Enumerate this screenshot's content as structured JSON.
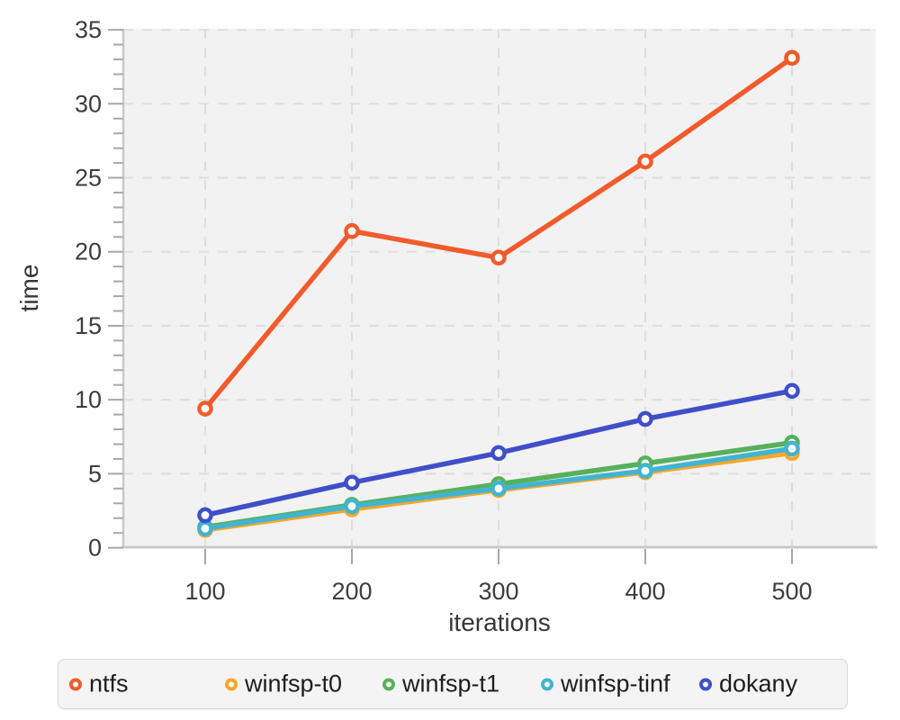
{
  "chart_data": {
    "type": "line",
    "x": [
      100,
      200,
      300,
      400,
      500
    ],
    "series": [
      {
        "name": "ntfs",
        "color": "#f15b2b",
        "values": [
          9.4,
          21.4,
          19.6,
          26.1,
          33.1
        ]
      },
      {
        "name": "winfsp-t0",
        "color": "#f9a72a",
        "values": [
          1.2,
          2.6,
          3.9,
          5.1,
          6.4
        ]
      },
      {
        "name": "winfsp-t1",
        "color": "#57b15b",
        "values": [
          1.4,
          2.9,
          4.3,
          5.7,
          7.1
        ]
      },
      {
        "name": "winfsp-tinf",
        "color": "#41b4d2",
        "values": [
          1.3,
          2.8,
          4.0,
          5.2,
          6.7
        ]
      },
      {
        "name": "dokany",
        "color": "#3f4fc8",
        "values": [
          2.2,
          4.4,
          6.4,
          8.7,
          10.6
        ]
      }
    ],
    "title": "",
    "xlabel": "iterations",
    "ylabel": "time",
    "xticks": [
      100,
      200,
      300,
      400,
      500
    ],
    "yticks": [
      0,
      5,
      10,
      15,
      20,
      25,
      30,
      35
    ],
    "ylim": [
      0,
      35
    ],
    "grid": true,
    "grid_style": "dashed",
    "legend_position": "bottom",
    "marker": "open-circle"
  },
  "style": {
    "plot_background": "#f2f2f3",
    "gridline_color": "#dfdfdf",
    "axis_line_color": "#c9c9c9",
    "tick_color": "#a8a8a8",
    "tick_label_color": "#3e3e3e",
    "axis_label_color": "#363636",
    "marker_fill": "#ffffff"
  }
}
